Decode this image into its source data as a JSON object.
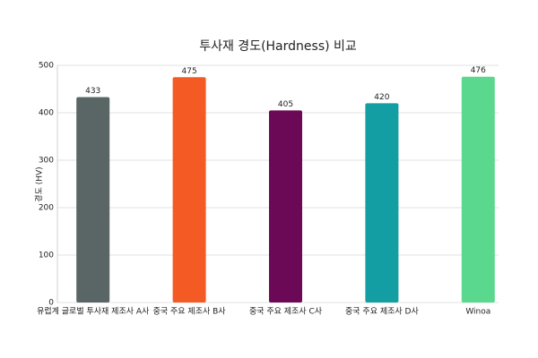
{
  "chart_data": {
    "type": "bar",
    "title": "투사재 경도(Hardness) 비교",
    "y_label": "경도 (HV)",
    "categories": [
      "유럽계 글로벌 투사재 제조사 A사",
      "중국 주요 제조사 B사",
      "중국 주요 제조사 C사",
      "중국 주요 제조사 D사",
      "Winoa"
    ],
    "values": [
      433,
      475,
      405,
      420,
      476
    ],
    "colors": [
      "#5a6566",
      "#f35a24",
      "#6b0957",
      "#129ea3",
      "#5ad88e"
    ],
    "ylim": [
      0,
      500
    ],
    "yticks": [
      0,
      100,
      200,
      300,
      400,
      500
    ],
    "grid": true
  }
}
